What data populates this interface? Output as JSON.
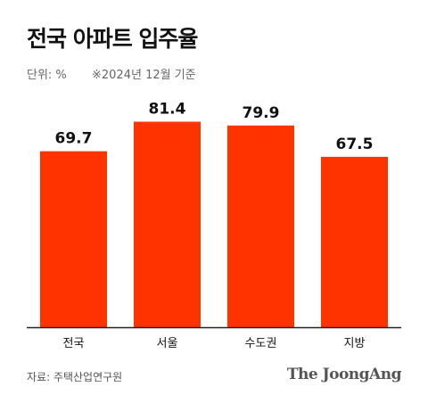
{
  "header": {
    "title": "전국 아파트 입주율",
    "unit": "단위: %",
    "note": "※2024년 12월 기준"
  },
  "footer": {
    "source": "자료: 주택산업연구원",
    "logo": "The JoongAng"
  },
  "colors": {
    "bar": "#ff3300",
    "baseline": "#222222"
  },
  "chart_data": {
    "type": "bar",
    "categories": [
      "전국",
      "서울",
      "수도권",
      "지방"
    ],
    "values": [
      69.7,
      81.4,
      79.9,
      67.5
    ],
    "title": "전국 아파트 입주율",
    "xlabel": "",
    "ylabel": "",
    "ylim": [
      0,
      95
    ],
    "grid": false,
    "legend": "none"
  }
}
